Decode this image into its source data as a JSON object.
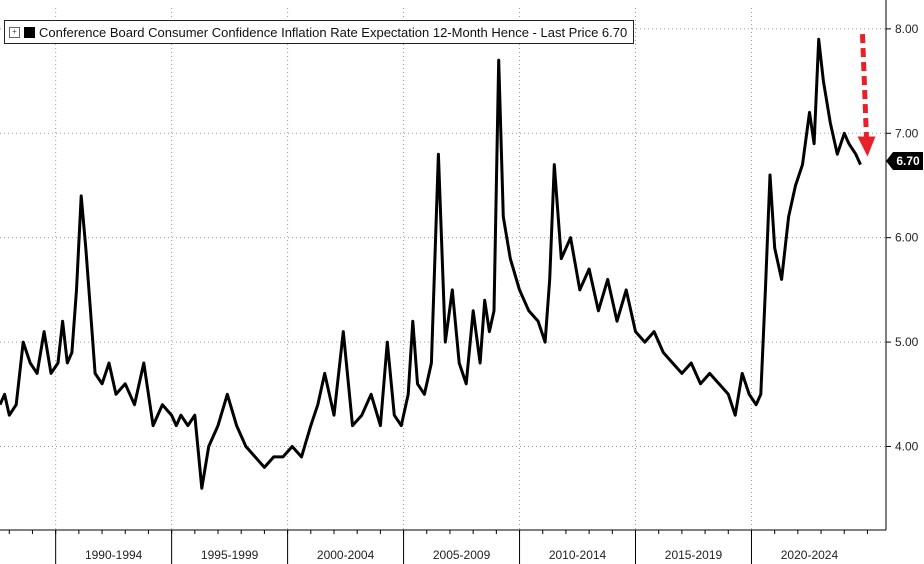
{
  "chart_data": {
    "type": "line",
    "legend_text": "Conference Board Consumer Confidence Inflation Rate Expectation 12-Month Hence - Last Price 6.70",
    "last_price_label": "6.70",
    "x_tick_labels": [
      "1990-1994",
      "1995-1999",
      "2000-2004",
      "2005-2009",
      "2010-2014",
      "2015-2019",
      "2020-2024"
    ],
    "y_tick_labels": [
      "8.00",
      "7.00",
      "6.00",
      "5.00",
      "4.00"
    ],
    "ylim": [
      3.2,
      8.2
    ],
    "xlim": [
      1987.6,
      2025.8
    ],
    "grid": true,
    "legend_position": "top-left",
    "line_color": "#000000",
    "arrow_color": "#e8202a",
    "series": [
      {
        "x": [
          1987.6,
          1987.8,
          1988.0,
          1988.3,
          1988.6,
          1988.9,
          1989.2,
          1989.5,
          1989.8,
          1990.1,
          1990.3,
          1990.5,
          1990.7,
          1990.9,
          1991.1,
          1991.3,
          1991.5,
          1991.7,
          1992.0,
          1992.3,
          1992.6,
          1993.0,
          1993.4,
          1993.8,
          1994.2,
          1994.6,
          1995.0,
          1995.2,
          1995.4,
          1995.7,
          1996.0,
          1996.3,
          1996.6,
          1997.0,
          1997.4,
          1997.8,
          1998.2,
          1998.6,
          1999.0,
          1999.4,
          1999.8,
          2000.2,
          2000.6,
          2001.0,
          2001.3,
          2001.6,
          2002.0,
          2002.4,
          2002.8,
          2003.2,
          2003.6,
          2004.0,
          2004.3,
          2004.6,
          2004.9,
          2005.2,
          2005.4,
          2005.6,
          2005.9,
          2006.2,
          2006.5,
          2006.8,
          2007.1,
          2007.4,
          2007.7,
          2008.0,
          2008.3,
          2008.5,
          2008.7,
          2008.9,
          2009.1,
          2009.3,
          2009.6,
          2010.0,
          2010.4,
          2010.8,
          2011.1,
          2011.3,
          2011.5,
          2011.8,
          2012.2,
          2012.6,
          2013.0,
          2013.4,
          2013.8,
          2014.2,
          2014.6,
          2015.0,
          2015.4,
          2015.8,
          2016.2,
          2016.6,
          2017.0,
          2017.4,
          2017.8,
          2018.2,
          2018.6,
          2019.0,
          2019.3,
          2019.6,
          2019.9,
          2020.2,
          2020.4,
          2020.6,
          2020.8,
          2021.0,
          2021.3,
          2021.6,
          2021.9,
          2022.2,
          2022.5,
          2022.7,
          2022.9,
          2023.1,
          2023.4,
          2023.7,
          2024.0,
          2024.2,
          2024.5,
          2024.7
        ],
        "values": [
          4.4,
          4.5,
          4.3,
          4.4,
          5.0,
          4.8,
          4.7,
          5.1,
          4.7,
          4.8,
          5.2,
          4.8,
          4.9,
          5.5,
          6.4,
          5.9,
          5.3,
          4.7,
          4.6,
          4.8,
          4.5,
          4.6,
          4.4,
          4.8,
          4.2,
          4.4,
          4.3,
          4.2,
          4.3,
          4.2,
          4.3,
          3.6,
          4.0,
          4.2,
          4.5,
          4.2,
          4.0,
          3.9,
          3.8,
          3.9,
          3.9,
          4.0,
          3.9,
          4.2,
          4.4,
          4.7,
          4.3,
          5.1,
          4.2,
          4.3,
          4.5,
          4.2,
          5.0,
          4.3,
          4.2,
          4.5,
          5.2,
          4.6,
          4.5,
          4.8,
          6.8,
          5.0,
          5.5,
          4.8,
          4.6,
          5.3,
          4.8,
          5.4,
          5.1,
          5.3,
          7.7,
          6.2,
          5.8,
          5.5,
          5.3,
          5.2,
          5.0,
          5.6,
          6.7,
          5.8,
          6.0,
          5.5,
          5.7,
          5.3,
          5.6,
          5.2,
          5.5,
          5.1,
          5.0,
          5.1,
          4.9,
          4.8,
          4.7,
          4.8,
          4.6,
          4.7,
          4.6,
          4.5,
          4.3,
          4.7,
          4.5,
          4.4,
          4.5,
          5.5,
          6.6,
          5.9,
          5.6,
          6.2,
          6.5,
          6.7,
          7.2,
          6.9,
          7.9,
          7.5,
          7.1,
          6.8,
          7.0,
          6.9,
          6.8,
          6.7
        ]
      }
    ]
  }
}
